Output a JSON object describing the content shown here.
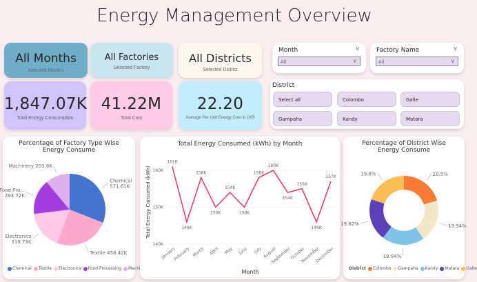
{
  "header": {
    "title": "Energy Management Overview"
  },
  "selection_cards": [
    {
      "value": "All Months",
      "label": "Selected Months",
      "color": "#6fadc8"
    },
    {
      "value": "All Factories",
      "label": "Selected Factory",
      "color": "#c9e5ef"
    },
    {
      "value": "All Districts",
      "label": "Selected District",
      "color": "#fdf8ef"
    }
  ],
  "kpis": [
    {
      "value": "1,847.07K",
      "label": "Total Energy Consumption",
      "color": "#d0c4fb"
    },
    {
      "value": "41.22M",
      "label": "Total Cost",
      "color": "#fdcbe7"
    },
    {
      "value": "22.20",
      "label": "Average Per Unit Energy Cost in LKR",
      "color": "#c2ecfb"
    }
  ],
  "slicers": {
    "month": {
      "label": "Month",
      "value": "All"
    },
    "factory": {
      "label": "Factory Name",
      "value": "All"
    },
    "district": {
      "label": "District",
      "options": [
        "Select all",
        "Colombo",
        "Galle",
        "Gampaha",
        "Kandy",
        "Matara"
      ]
    }
  },
  "chart_data": [
    {
      "type": "pie",
      "title": "Percentage of Factory Type Wise Energy Consume",
      "categories": [
        "Chemical",
        "Textile",
        "Electronics",
        "Food Processing",
        "Machinery"
      ],
      "values": [
        571.61,
        458.42,
        319.73,
        293.72,
        203.6
      ],
      "data_labels": [
        "Chemical 571.61K",
        "Textile 458.42K",
        "Electronics 319.73K",
        "Food Pro... 293.72K",
        "Machinery 203.6K"
      ],
      "colors": [
        "#4473d0",
        "#fba9cd",
        "#fdc9e6",
        "#a23ee0",
        "#dfb0ee"
      ],
      "legend": "bottom"
    },
    {
      "type": "line",
      "title": "Total Energy Consumed (kWh) by Month",
      "xlabel": "Month",
      "ylabel": "Total Energy Consumed (kWh)",
      "categories": [
        "January",
        "February",
        "March",
        "April",
        "May",
        "June",
        "July",
        "August",
        "September",
        "October",
        "November",
        "December"
      ],
      "values": [
        161,
        146,
        158,
        150,
        154,
        150,
        158,
        160,
        154,
        155,
        146,
        157
      ],
      "data_labels": [
        "161K",
        "146K",
        "158K",
        "150K",
        "154K",
        "150K",
        "158K",
        "160K",
        "154K",
        "155K",
        "146K",
        "157K"
      ],
      "yticks": [
        "140K",
        "150K",
        "160K"
      ],
      "ylim": [
        140,
        163
      ],
      "unit": "K",
      "color": "#e8406c",
      "grid": true
    },
    {
      "type": "pie",
      "donut": true,
      "title": "Percentage of District Wise Energy Consume",
      "legend_title": "District",
      "categories": [
        "Colombo",
        "Gampaha",
        "Kandy",
        "Matara",
        "Galle"
      ],
      "values": [
        20.5,
        19.94,
        19.94,
        19.82,
        19.8
      ],
      "data_labels": [
        "20.5%",
        "19.94%",
        "19.94%",
        "19.82%",
        "19.8%"
      ],
      "colors": [
        "#fb7b35",
        "#f5e8c8",
        "#7fc3e9",
        "#5b40b8",
        "#fbbd52"
      ],
      "legend": "bottom"
    }
  ]
}
